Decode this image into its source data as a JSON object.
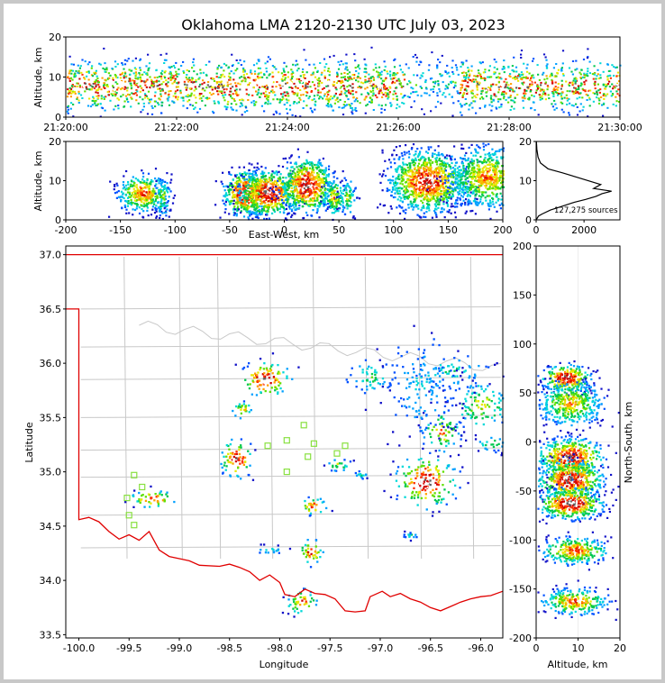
{
  "title": "Oklahoma LMA 2120-2130 UTC July 03, 2023",
  "colormap": [
    "#1010c8",
    "#0050ff",
    "#00a0ff",
    "#00d8d8",
    "#00c850",
    "#60e000",
    "#e8e800",
    "#ffa000",
    "#ff3000",
    "#d00000",
    "#ffffff",
    "#606060"
  ],
  "boundary_color": "#c8c8c8",
  "state_line_color": "#e00000",
  "station_color": "#88e040",
  "chart_data": [
    {
      "type": "heatmap",
      "panel": "time-height",
      "xlabel": "",
      "ylabel": "Altitude, km",
      "xticks": [
        "21:20:00",
        "21:22:00",
        "21:24:00",
        "21:26:00",
        "21:28:00",
        "21:30:00"
      ],
      "yticks": [
        "0",
        "10",
        "20"
      ],
      "xlim": [
        0,
        10
      ],
      "ylim": [
        0,
        20
      ],
      "x_units": "minutes after 21:20:00",
      "density": [
        {
          "t0": 0.0,
          "t1": 6.1,
          "alt": 8,
          "intensity": 0.95
        },
        {
          "t0": 6.1,
          "t1": 7.1,
          "alt": 9,
          "intensity": 0.45
        },
        {
          "t0": 7.1,
          "t1": 10.0,
          "alt": 8,
          "intensity": 0.9
        }
      ]
    },
    {
      "type": "heatmap",
      "panel": "east-west vs altitude",
      "xlabel": "East-West, km",
      "ylabel": "Altitude, km",
      "xticks": [
        "-200",
        "-150",
        "-100",
        "-50",
        "0",
        "50",
        "100",
        "150",
        "200"
      ],
      "yticks": [
        "0",
        "10",
        "20"
      ],
      "xlim": [
        -200,
        200
      ],
      "ylim": [
        0,
        20
      ],
      "clusters": [
        {
          "x": -130,
          "z": 7,
          "sx": 12,
          "sz": 2.5,
          "intensity": 0.8
        },
        {
          "x": -112,
          "z": 6,
          "sx": 4,
          "sz": 2.5,
          "intensity": 0.55
        },
        {
          "x": -37,
          "z": 7,
          "sx": 10,
          "sz": 3,
          "intensity": 1.0
        },
        {
          "x": -15,
          "z": 7,
          "sx": 14,
          "sz": 3,
          "intensity": 1.0
        },
        {
          "x": 20,
          "z": 9,
          "sx": 12,
          "sz": 3.5,
          "intensity": 1.0
        },
        {
          "x": 45,
          "z": 6,
          "sx": 5,
          "sz": 2.5,
          "intensity": 0.7
        },
        {
          "x": 57,
          "z": 6,
          "sx": 4,
          "sz": 2.5,
          "intensity": 0.55
        },
        {
          "x": 130,
          "z": 10,
          "sx": 18,
          "sz": 4,
          "intensity": 0.95
        },
        {
          "x": 185,
          "z": 11,
          "sx": 18,
          "sz": 4,
          "intensity": 0.75
        }
      ]
    },
    {
      "type": "line",
      "panel": "altitude histogram",
      "xticks": [
        "0",
        "2000"
      ],
      "yticks": [
        "0",
        "10",
        "20"
      ],
      "xlim": [
        0,
        3500
      ],
      "ylim": [
        0,
        20
      ],
      "annotation": "127,275 sources",
      "x": [
        0,
        100,
        250,
        600,
        1100,
        1600,
        2050,
        2500,
        2750,
        3150,
        2400,
        2700,
        1900,
        1100,
        500,
        180,
        80,
        30,
        10
      ],
      "y": [
        0,
        1,
        1.5,
        2.5,
        3.5,
        4.5,
        5.2,
        6,
        6.7,
        7.3,
        8,
        9,
        10.5,
        12,
        13,
        14.5,
        16,
        18,
        20
      ]
    },
    {
      "type": "scatter",
      "panel": "plan view map",
      "xlabel": "Longitude",
      "ylabel": "Latitude",
      "xticks": [
        "-100.0",
        "-99.5",
        "-99.0",
        "-98.5",
        "-98.0",
        "-97.5",
        "-97.0",
        "-96.5",
        "-96.0"
      ],
      "yticks": [
        "33.5",
        "34.0",
        "34.5",
        "35.0",
        "35.5",
        "36.0",
        "36.5",
        "37.0"
      ],
      "xlim": [
        -100.13,
        -95.78
      ],
      "ylim": [
        33.47,
        37.08
      ],
      "stations": [
        {
          "lon": -99.45,
          "lat": 34.97
        },
        {
          "lon": -99.52,
          "lat": 34.76
        },
        {
          "lon": -99.37,
          "lat": 34.86
        },
        {
          "lon": -99.5,
          "lat": 34.6
        },
        {
          "lon": -99.45,
          "lat": 34.51
        },
        {
          "lon": -98.12,
          "lat": 35.24
        },
        {
          "lon": -97.93,
          "lat": 35.29
        },
        {
          "lon": -97.93,
          "lat": 35.0
        },
        {
          "lon": -97.76,
          "lat": 35.43
        },
        {
          "lon": -97.66,
          "lat": 35.26
        },
        {
          "lon": -97.72,
          "lat": 35.14
        },
        {
          "lon": -97.43,
          "lat": 35.17
        },
        {
          "lon": -97.35,
          "lat": 35.24
        }
      ],
      "clusters": [
        {
          "lon": -98.15,
          "lat": 35.86,
          "slon": 0.12,
          "slat": 0.08,
          "intensity": 1.0
        },
        {
          "lon": -98.38,
          "lat": 35.58,
          "slon": 0.05,
          "slat": 0.04,
          "intensity": 0.7
        },
        {
          "lon": -98.44,
          "lat": 35.13,
          "slon": 0.08,
          "slat": 0.09,
          "intensity": 0.95
        },
        {
          "lon": -99.27,
          "lat": 34.76,
          "slon": 0.12,
          "slat": 0.04,
          "intensity": 0.85
        },
        {
          "lon": -97.68,
          "lat": 34.69,
          "slon": 0.07,
          "slat": 0.04,
          "intensity": 0.85
        },
        {
          "lon": -97.7,
          "lat": 34.27,
          "slon": 0.06,
          "slat": 0.06,
          "intensity": 0.85
        },
        {
          "lon": -97.78,
          "lat": 33.81,
          "slon": 0.08,
          "slat": 0.06,
          "intensity": 0.8
        },
        {
          "lon": -98.1,
          "lat": 34.29,
          "slon": 0.08,
          "slat": 0.02,
          "intensity": 0.4
        },
        {
          "lon": -97.42,
          "lat": 35.07,
          "slon": 0.06,
          "slat": 0.03,
          "intensity": 0.6
        },
        {
          "lon": -97.2,
          "lat": 34.98,
          "slon": 0.04,
          "slat": 0.02,
          "intensity": 0.4
        },
        {
          "lon": -96.55,
          "lat": 34.92,
          "slon": 0.15,
          "slat": 0.12,
          "intensity": 1.0
        },
        {
          "lon": -96.4,
          "lat": 35.38,
          "slon": 0.1,
          "slat": 0.1,
          "intensity": 0.7
        },
        {
          "lon": -96.0,
          "lat": 35.62,
          "slon": 0.15,
          "slat": 0.12,
          "intensity": 0.6
        },
        {
          "lon": -95.9,
          "lat": 35.27,
          "slon": 0.08,
          "slat": 0.04,
          "intensity": 0.5
        },
        {
          "lon": -97.1,
          "lat": 35.88,
          "slon": 0.12,
          "slat": 0.08,
          "intensity": 0.45
        },
        {
          "lon": -96.3,
          "lat": 35.93,
          "slon": 0.2,
          "slat": 0.08,
          "intensity": 0.4
        },
        {
          "lon": -96.6,
          "lat": 35.8,
          "slon": 0.2,
          "slat": 0.25,
          "intensity": 0.3
        },
        {
          "lon": -96.7,
          "lat": 34.42,
          "slon": 0.04,
          "slat": 0.02,
          "intensity": 0.4
        }
      ]
    },
    {
      "type": "heatmap",
      "panel": "altitude vs north-south",
      "xlabel": "Altitude, km",
      "ylabel": "North-South, km",
      "xticks": [
        "0",
        "10",
        "20"
      ],
      "yticks": [
        "200",
        "150",
        "100",
        "50",
        "0",
        "-50",
        "-100",
        "-150",
        "-200"
      ],
      "xlim": [
        0,
        20
      ],
      "ylim": [
        -200,
        200
      ],
      "clusters": [
        {
          "z": 7,
          "y": 66,
          "sz": 3,
          "sy": 7,
          "intensity": 1.0
        },
        {
          "z": 8,
          "y": 40,
          "sz": 4,
          "sy": 12,
          "intensity": 0.7
        },
        {
          "z": 8,
          "y": -15,
          "sz": 4,
          "sy": 10,
          "intensity": 1.0
        },
        {
          "z": 8,
          "y": -38,
          "sz": 4,
          "sy": 10,
          "intensity": 1.0
        },
        {
          "z": 8,
          "y": -62,
          "sz": 4,
          "sy": 8,
          "intensity": 1.0
        },
        {
          "z": 9,
          "y": -110,
          "sz": 4,
          "sy": 7,
          "intensity": 0.85
        },
        {
          "z": 9,
          "y": -162,
          "sz": 4,
          "sy": 7,
          "intensity": 0.8
        }
      ]
    }
  ]
}
